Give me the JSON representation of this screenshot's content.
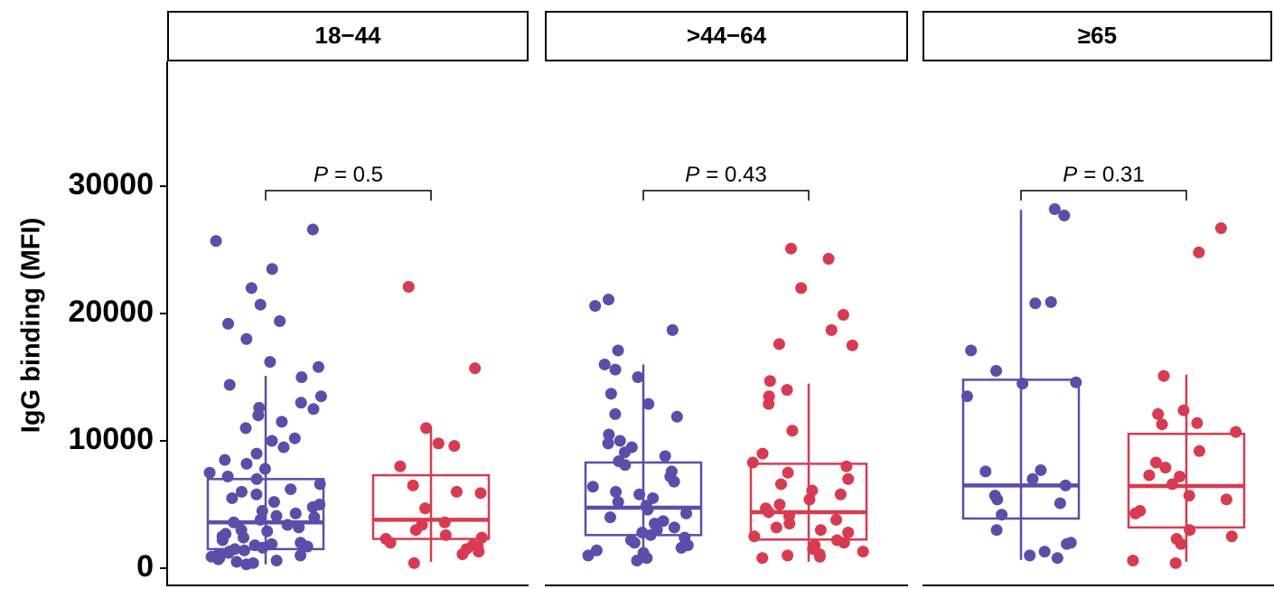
{
  "chart_data": {
    "type": "box",
    "y_label": "IgG binding (MFI)",
    "ylim": [
      -1350,
      39800
    ],
    "yticks": [
      0,
      10000,
      20000,
      30000
    ],
    "panels": [
      {
        "title": "18−44",
        "annotation": {
          "symbol": "P",
          "text": "= 0.5"
        },
        "groups": [
          {
            "color": "#5c4dab",
            "box": {
              "low": 300,
              "q1": 1500,
              "median": 3600,
              "q3": 7000,
              "high": 15100
            },
            "points": [
              26600,
              25700,
              23500,
              22000,
              20700,
              19400,
              19200,
              18000,
              16200,
              15800,
              15000,
              14400,
              13500,
              13000,
              12600,
              12500,
              12000,
              11500,
              11000,
              10200,
              10000,
              9500,
              9000,
              8500,
              8200,
              7800,
              7500,
              7200,
              7000,
              6600,
              6200,
              6000,
              5800,
              5500,
              5200,
              5000,
              4800,
              4500,
              4300,
              4100,
              4000,
              3800,
              3600,
              3400,
              3200,
              3000,
              2900,
              2700,
              2500,
              2400,
              2200,
              2000,
              1900,
              1800,
              1700,
              1600,
              1500,
              1400,
              1300,
              1200,
              1100,
              1000,
              900,
              800,
              700,
              600,
              500,
              400,
              300
            ]
          },
          {
            "color": "#d93a50",
            "box": {
              "low": 500,
              "q1": 2300,
              "median": 3800,
              "q3": 7300,
              "high": 11000
            },
            "points": [
              22100,
              15700,
              11000,
              9800,
              9600,
              8000,
              6500,
              6000,
              5900,
              4700,
              3600,
              3400,
              3000,
              2600,
              2400,
              2300,
              2000,
              1800,
              1700,
              1500,
              1300,
              1100,
              400
            ]
          }
        ]
      },
      {
        "title": ">44−64",
        "annotation": {
          "symbol": "P",
          "text": "= 0.43"
        },
        "groups": [
          {
            "color": "#5c4dab",
            "box": {
              "low": 400,
              "q1": 2600,
              "median": 4750,
              "q3": 8300,
              "high": 16000
            },
            "points": [
              21100,
              20600,
              18700,
              17100,
              16000,
              15600,
              15000,
              13700,
              12900,
              12100,
              11900,
              10500,
              10000,
              9800,
              9500,
              9100,
              8800,
              8400,
              8100,
              7600,
              7200,
              6800,
              6400,
              6000,
              5800,
              5500,
              5200,
              4900,
              4600,
              4300,
              4000,
              3700,
              3500,
              3200,
              3000,
              2800,
              2600,
              2400,
              2200,
              2000,
              1800,
              1600,
              1400,
              1200,
              1000,
              800,
              600
            ]
          },
          {
            "color": "#d93a50",
            "box": {
              "low": 500,
              "q1": 2250,
              "median": 4400,
              "q3": 8200,
              "high": 14500
            },
            "points": [
              25100,
              24300,
              22000,
              19900,
              18700,
              17600,
              17500,
              14700,
              14000,
              13500,
              12900,
              10800,
              9000,
              8300,
              8000,
              7500,
              7000,
              6600,
              6100,
              5800,
              5400,
              5000,
              4700,
              4400,
              4100,
              3800,
              3500,
              3200,
              3000,
              2800,
              2500,
              2200,
              2000,
              1800,
              1500,
              1300,
              1100,
              1000,
              900,
              800
            ]
          }
        ]
      },
      {
        "title": "≥65",
        "annotation": {
          "symbol": "P",
          "text": "= 0.31"
        },
        "groups": [
          {
            "color": "#5c4dab",
            "box": {
              "low": 650,
              "q1": 3900,
              "median": 6500,
              "q3": 14800,
              "high": 28150
            },
            "points": [
              28200,
              27700,
              20900,
              20800,
              17100,
              15500,
              14600,
              14500,
              13500,
              7700,
              7600,
              7000,
              6500,
              5700,
              5400,
              5100,
              4200,
              3000,
              2000,
              1900,
              1300,
              1000,
              800
            ]
          },
          {
            "color": "#d93a50",
            "box": {
              "low": 500,
              "q1": 3200,
              "median": 6450,
              "q3": 10550,
              "high": 15200
            },
            "points": [
              26700,
              24800,
              15100,
              12400,
              12100,
              11400,
              11300,
              10700,
              9200,
              8300,
              7900,
              7300,
              7200,
              6600,
              5700,
              5400,
              4500,
              4300,
              3000,
              2500,
              2300,
              1900,
              600,
              400
            ]
          }
        ]
      }
    ]
  }
}
